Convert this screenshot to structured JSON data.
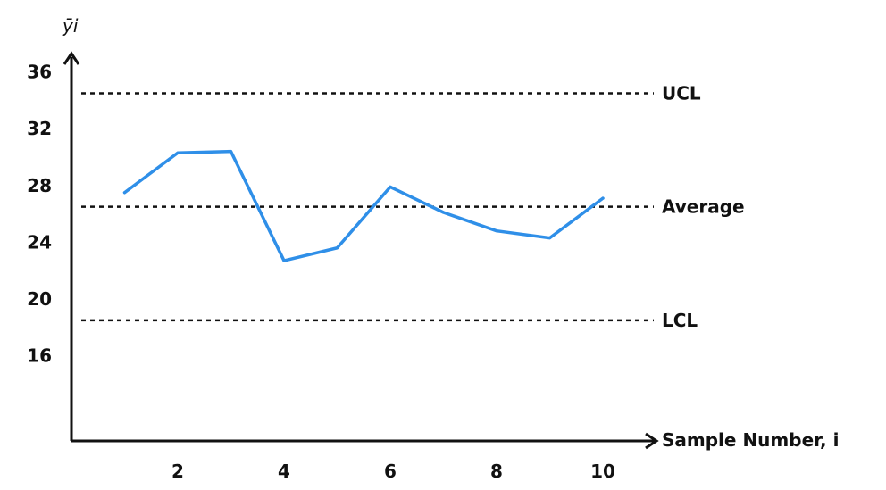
{
  "chart_data": {
    "type": "line",
    "title": "",
    "xlabel": "Sample Number, i",
    "ylabel": "ȳi",
    "x": [
      1,
      2,
      3,
      4,
      5,
      6,
      7,
      8,
      9,
      10
    ],
    "series": [
      {
        "values": [
          27.5,
          30.3,
          30.4,
          22.7,
          23.6,
          27.9,
          26.1,
          24.8,
          24.3,
          27.1
        ]
      }
    ],
    "x_ticks": [
      2,
      4,
      6,
      8,
      10
    ],
    "y_ticks": [
      16,
      20,
      24,
      28,
      32,
      36
    ],
    "xlim": [
      0,
      11
    ],
    "ylim": [
      10,
      40
    ],
    "reference_lines": [
      {
        "label": "UCL",
        "value": 34.5
      },
      {
        "label": "Average",
        "value": 26.5
      },
      {
        "label": "LCL",
        "value": 18.5
      }
    ],
    "grid": false,
    "colors": {
      "series": "#2f8fe8",
      "axis": "#111111",
      "reference": "#111111"
    }
  }
}
